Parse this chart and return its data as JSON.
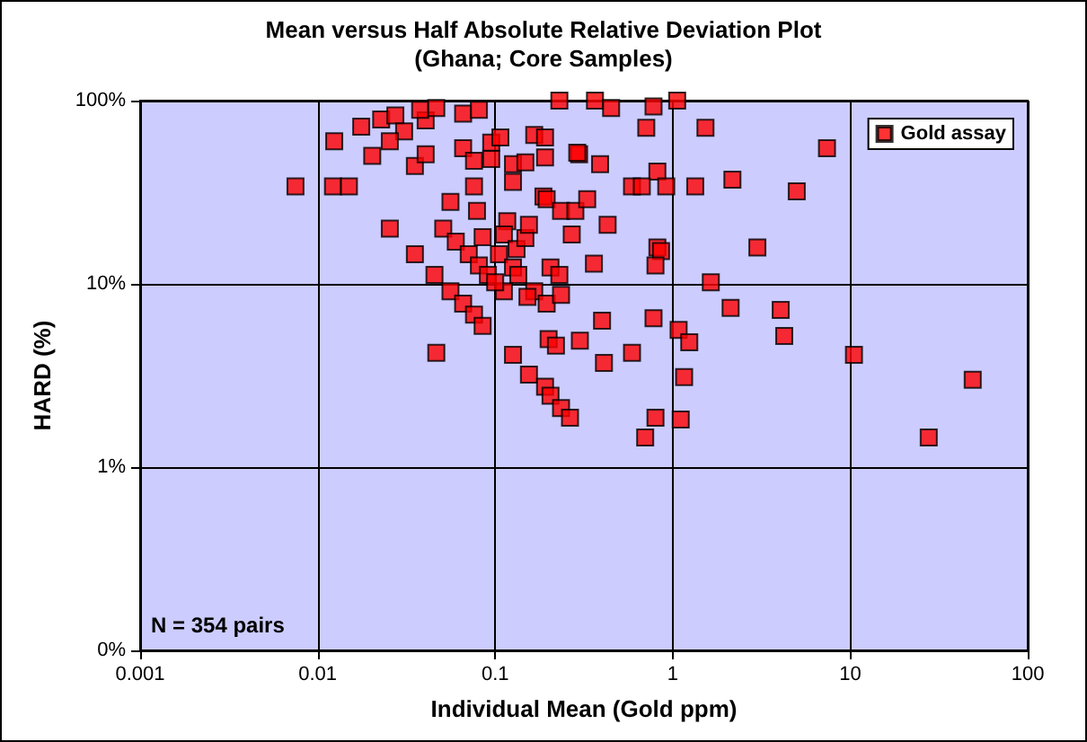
{
  "chart_data": {
    "type": "scatter",
    "title": "Mean versus Half Absolute Relative Deviation Plot",
    "subtitle": "(Ghana; Core Samples)",
    "xlabel": "Individual Mean (Gold ppm)",
    "ylabel": "HARD (%)",
    "annotations": [
      "N = 354 pairs"
    ],
    "log": "xy",
    "grid": true,
    "legend": "top right",
    "marker": "square",
    "xlim": [
      0.001,
      100
    ],
    "xticks": [
      0.001,
      0.01,
      0.1,
      1,
      10,
      100
    ],
    "ylim": [
      0.1,
      100
    ],
    "yticks": [
      {
        "value": 0.1,
        "label": "0%"
      },
      {
        "value": 1,
        "label": "1%"
      },
      {
        "value": 10,
        "label": "10%"
      },
      {
        "value": 100,
        "label": "100%"
      }
    ],
    "series": [
      {
        "name": "Gold assay",
        "color": "#ff0000",
        "x": [
          0.0075,
          0.0124,
          0.0122,
          0.015,
          0.0176,
          0.0228,
          0.0274,
          0.0307,
          0.0255,
          0.0203,
          0.0255,
          0.0353,
          0.0406,
          0.0406,
          0.0378,
          0.0466,
          0.066,
          0.081,
          0.066,
          0.076,
          0.076,
          0.056,
          0.079,
          0.051,
          0.06,
          0.0353,
          0.0455,
          0.056,
          0.066,
          0.076,
          0.085,
          0.0466,
          0.085,
          0.071,
          0.081,
          0.091,
          0.105,
          0.117,
          0.112,
          0.132,
          0.148,
          0.155,
          0.126,
          0.135,
          0.112,
          0.1,
          0.095,
          0.107,
          0.095,
          0.126,
          0.126,
          0.148,
          0.166,
          0.191,
          0.191,
          0.187,
          0.195,
          0.235,
          0.283,
          0.27,
          0.205,
          0.23,
          0.166,
          0.152,
          0.195,
          0.235,
          0.2,
          0.22,
          0.126,
          0.155,
          0.23,
          0.297,
          0.365,
          0.45,
          0.78,
          1.06,
          0.71,
          1.53,
          7.4,
          0.29,
          0.39,
          0.82,
          0.59,
          0.67,
          0.92,
          1.34,
          2.17,
          5.0,
          0.33,
          0.43,
          0.82,
          0.86,
          0.8,
          0.36,
          3.0,
          1.64,
          2.12,
          4.06,
          4.25,
          10.5,
          49,
          0.4,
          0.78,
          1.08,
          1.24,
          0.59,
          0.41,
          0.3,
          1.16,
          27.7,
          0.191,
          0.205,
          0.235,
          0.264,
          0.8,
          1.11,
          0.7
        ],
        "values": [
          34,
          60,
          34,
          34,
          72,
          79,
          83,
          68,
          60,
          50,
          20,
          44,
          51,
          78,
          89,
          91,
          85,
          89,
          55,
          47,
          34,
          28,
          25,
          20,
          17,
          14.5,
          11.2,
          9.1,
          7.8,
          6.8,
          5.9,
          4.2,
          18,
          14.5,
          12.6,
          11.2,
          14.5,
          22,
          18.6,
          15.5,
          17.8,
          21,
          12.3,
          11.2,
          9.1,
          10.2,
          59,
          63,
          48,
          45,
          36,
          46,
          65,
          63,
          49,
          30,
          29,
          25,
          25,
          18.6,
          12.3,
          11.2,
          9.1,
          8.5,
          7.8,
          8.7,
          5.0,
          4.6,
          4.1,
          3.2,
          100,
          51,
          100,
          91,
          93,
          100,
          71,
          71,
          55,
          52,
          45,
          41,
          34,
          34,
          34,
          34,
          37,
          32,
          29,
          21,
          15.8,
          15.1,
          12.6,
          12.9,
          15.8,
          10.2,
          7.4,
          7.2,
          5.2,
          4.1,
          3.0,
          6.3,
          6.5,
          5.6,
          4.8,
          4.2,
          3.7,
          4.9,
          3.1,
          1.45,
          2.75,
          2.45,
          2.1,
          1.86,
          1.86,
          1.82,
          1.45
        ]
      }
    ]
  }
}
